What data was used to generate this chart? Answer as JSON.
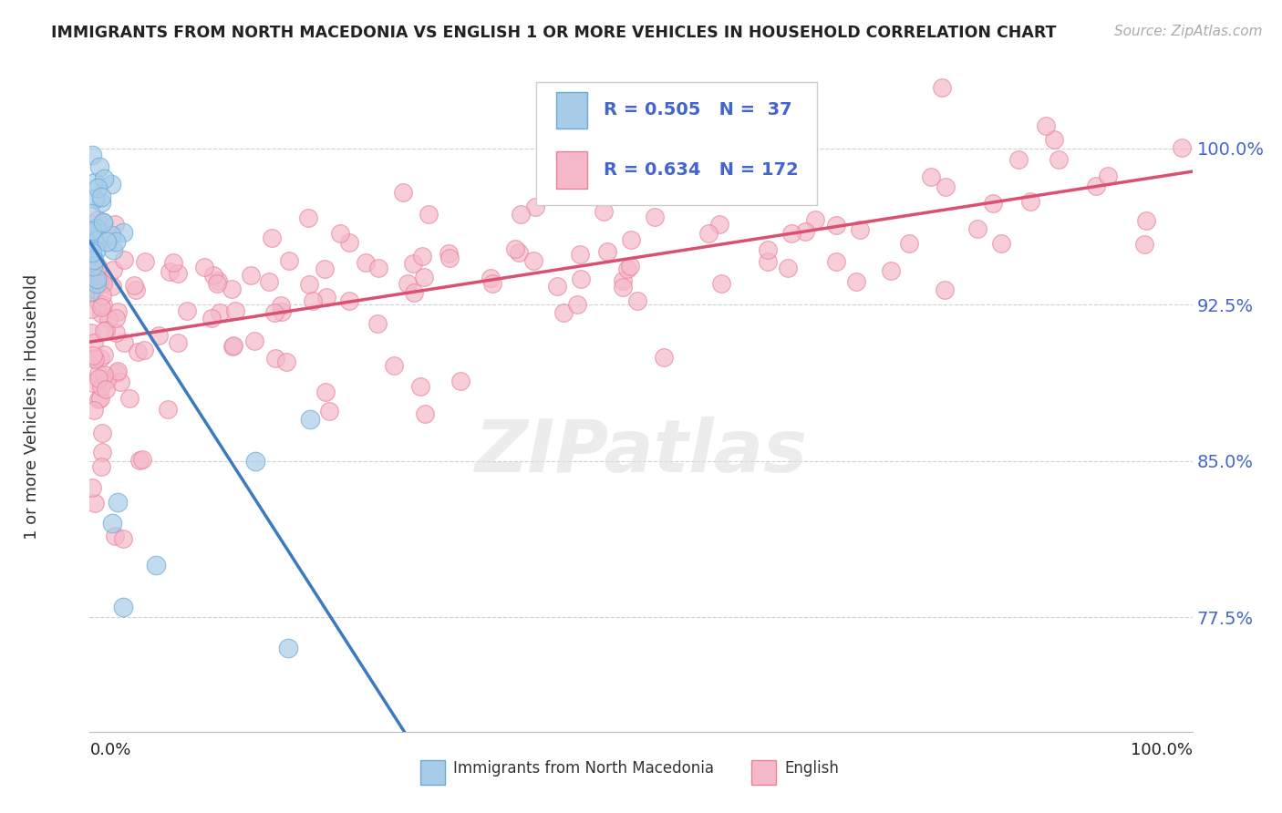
{
  "title": "IMMIGRANTS FROM NORTH MACEDONIA VS ENGLISH 1 OR MORE VEHICLES IN HOUSEHOLD CORRELATION CHART",
  "source": "Source: ZipAtlas.com",
  "ylabel": "1 or more Vehicles in Household",
  "ytick_labels": [
    "77.5%",
    "85.0%",
    "92.5%",
    "100.0%"
  ],
  "ytick_values": [
    0.775,
    0.85,
    0.925,
    1.0
  ],
  "legend_bottom_labels": [
    "Immigrants from North Macedonia",
    "English"
  ],
  "blue_R": 0.505,
  "blue_N": 37,
  "pink_R": 0.634,
  "pink_N": 172,
  "blue_color": "#a8cce8",
  "blue_edge_color": "#6aaad4",
  "blue_line_color": "#3a7abf",
  "pink_color": "#f5b8c8",
  "pink_edge_color": "#e8809a",
  "pink_line_color": "#d95070",
  "watermark_text": "ZIPatlas",
  "background_color": "#ffffff",
  "grid_color": "#d0d0d0",
  "title_color": "#222222",
  "source_color": "#aaaaaa",
  "ytick_color": "#4466cc",
  "xtick_color": "#222222",
  "ylabel_color": "#333333",
  "x_min": 0.0,
  "x_max": 1.0,
  "y_min": 0.72,
  "y_max": 1.04
}
